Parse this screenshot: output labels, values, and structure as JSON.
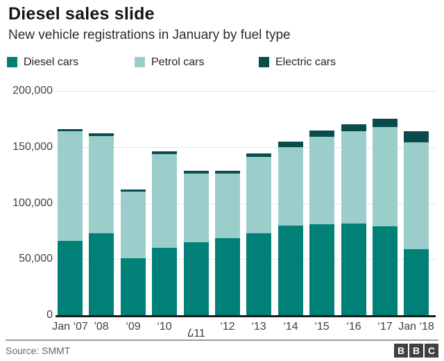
{
  "header": {
    "title": "Diesel sales slide",
    "subtitle": "New vehicle registrations in January by fuel type"
  },
  "chart_data": {
    "type": "bar",
    "stacked": true,
    "title": "Diesel sales slide",
    "subtitle": "New vehicle registrations in January by fuel type",
    "categories": [
      "Jan ‘07",
      "’08",
      "‘09",
      "‘10",
      "᠘11",
      "‘12",
      "‘13",
      "‘14",
      "‘15",
      "‘16",
      "‘17",
      "Jan ‘18"
    ],
    "series": [
      {
        "name": "Diesel cars",
        "color": "#008077",
        "values": [
          66000,
          73000,
          51000,
          60000,
          65000,
          69000,
          73000,
          80000,
          81000,
          82000,
          79000,
          59000
        ]
      },
      {
        "name": "Petrol cars",
        "color": "#9bcecb",
        "values": [
          98000,
          87000,
          59000,
          83500,
          61500,
          57500,
          68000,
          70000,
          78000,
          82000,
          88500,
          95000
        ]
      },
      {
        "name": "Electric cars",
        "color": "#084d4c",
        "values": [
          2000,
          2000,
          2000,
          2500,
          2500,
          2500,
          3000,
          5000,
          6000,
          6000,
          7500,
          10000
        ]
      }
    ],
    "totals": [
      166000,
      162000,
      112000,
      146000,
      129000,
      129000,
      144000,
      155000,
      165000,
      170000,
      175000,
      164000
    ],
    "ylim": [
      0,
      200000
    ],
    "yticks": [
      "0",
      "50,000",
      "100,000",
      "150,000",
      "200,000"
    ],
    "grid": true,
    "legend_position": "top",
    "xlabel": "",
    "ylabel": ""
  },
  "footer": {
    "source": "Source: SMMT",
    "logo_letters": [
      "B",
      "B",
      "C"
    ]
  }
}
